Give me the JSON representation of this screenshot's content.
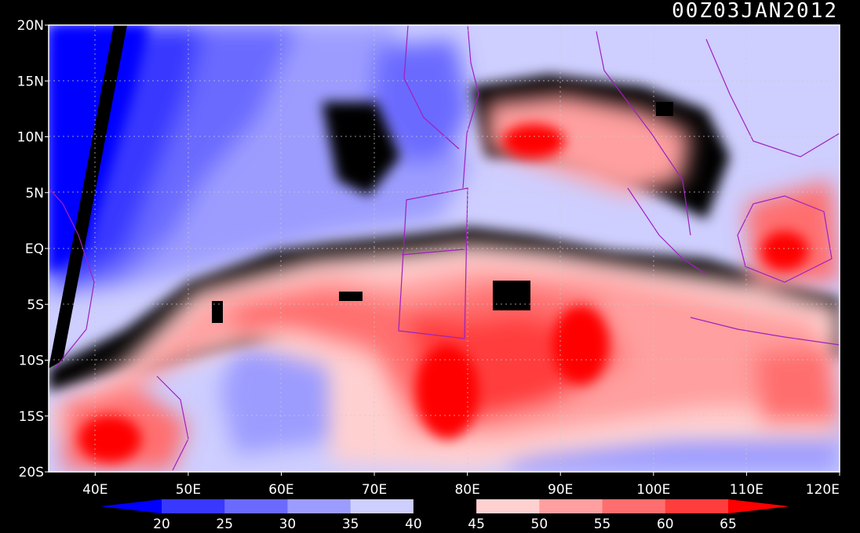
{
  "title": "00Z03JAN2012",
  "map": {
    "lon_range": [
      35,
      120
    ],
    "lat_range": [
      -20,
      20
    ],
    "lat_ticks": [
      {
        "value": 20,
        "label": "20N"
      },
      {
        "value": 15,
        "label": "15N"
      },
      {
        "value": 10,
        "label": "10N"
      },
      {
        "value": 5,
        "label": "5N"
      },
      {
        "value": 0,
        "label": "EQ"
      },
      {
        "value": -5,
        "label": "5S"
      },
      {
        "value": -10,
        "label": "10S"
      },
      {
        "value": -15,
        "label": "15S"
      },
      {
        "value": -20,
        "label": "20S"
      }
    ],
    "lon_ticks": [
      {
        "value": 40,
        "label": "40E"
      },
      {
        "value": 50,
        "label": "50E"
      },
      {
        "value": 60,
        "label": "60E"
      },
      {
        "value": 70,
        "label": "70E"
      },
      {
        "value": 80,
        "label": "80E"
      },
      {
        "value": 90,
        "label": "90E"
      },
      {
        "value": 100,
        "label": "100E"
      },
      {
        "value": 110,
        "label": "110E"
      },
      {
        "value": 120,
        "label": "120E"
      }
    ],
    "gridlines": "dotted"
  },
  "colorbar": {
    "labels": [
      "20",
      "25",
      "30",
      "35",
      "40",
      "45",
      "50",
      "55",
      "60",
      "65"
    ],
    "colors": [
      "#0000ff",
      "#3838ff",
      "#6a6aff",
      "#9c9cff",
      "#ceceff",
      "#000000",
      "#ffd0d0",
      "#ff9f9f",
      "#ff6e6e",
      "#ff3d3d",
      "#ff0000"
    ]
  },
  "colors": {
    "background": "#000000",
    "coastline": "#a020c0",
    "contour": "#ffffff"
  }
}
